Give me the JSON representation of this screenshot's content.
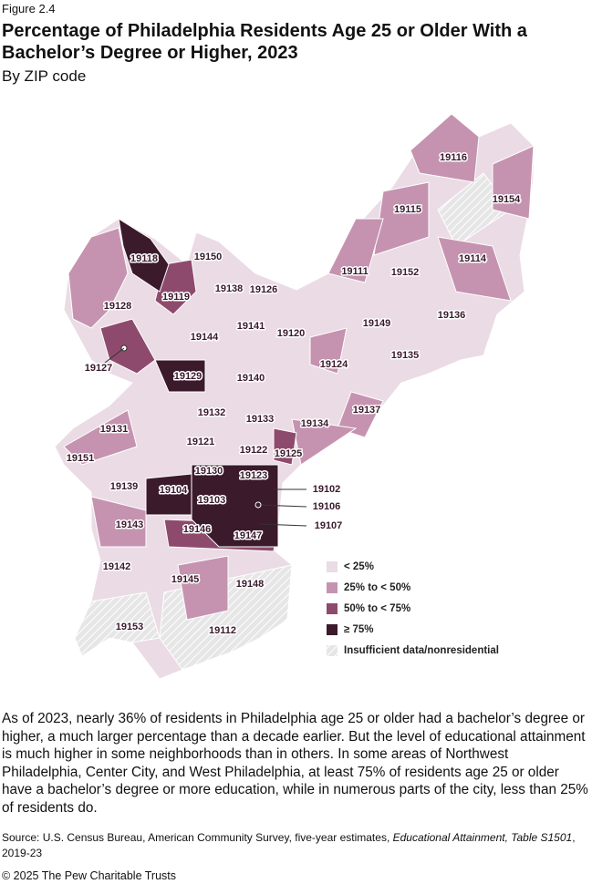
{
  "figure_label": "Figure 2.4",
  "title": "Percentage of Philadelphia Residents Age 25 or Older With a Bachelor’s Degree or Higher, 2023",
  "subtitle": "By ZIP code",
  "zip_labels": [
    "19116",
    "19154",
    "19115",
    "19118",
    "19150",
    "19114",
    "19111",
    "19152",
    "19119",
    "19138",
    "19126",
    "19128",
    "19136",
    "19149",
    "19141",
    "19120",
    "19144",
    "19135",
    "19127",
    "19124",
    "19129",
    "19140",
    "19137",
    "19132",
    "19133",
    "19134",
    "19131",
    "19121",
    "19122",
    "19125",
    "19151",
    "19130",
    "19123",
    "19102",
    "19139",
    "19104",
    "19103",
    "19106",
    "19143",
    "19146",
    "19147",
    "19107",
    "19142",
    "19145",
    "19148",
    "19153",
    "19112"
  ],
  "legend": [
    {
      "label": "< 25%",
      "color": "#eadbe4"
    },
    {
      "label": "25% to < 50%",
      "color": "#c593b0"
    },
    {
      "label": "50% to < 75%",
      "color": "#8e4a6d"
    },
    {
      "label": "≥ 75%",
      "color": "#3b1a2c"
    },
    {
      "label": "Insufficient data/nonresidential",
      "color": "#dcdcdc"
    }
  ],
  "paragraph": "As of 2023, nearly 36% of residents in Philadelphia age 25 or older had a bachelor’s degree or higher, a much larger percentage than a decade earlier. But the level of educational attainment is much higher in some neighborhoods than in others. In some areas of Northwest Philadelphia, Center City, and West Philadelphia, at least 75% of residents age 25 or older have a bachelor’s degree or more education, while in numerous parts of the city, less than 25% of residents do.",
  "source": {
    "prefix": "Source: U.S. Census Bureau, American Community Survey, five-year estimates, ",
    "italic": "Educational Attainment, Table S1501",
    "suffix": ", 2019-23"
  },
  "copyright": "© 2025 The Pew Charitable Trusts"
}
